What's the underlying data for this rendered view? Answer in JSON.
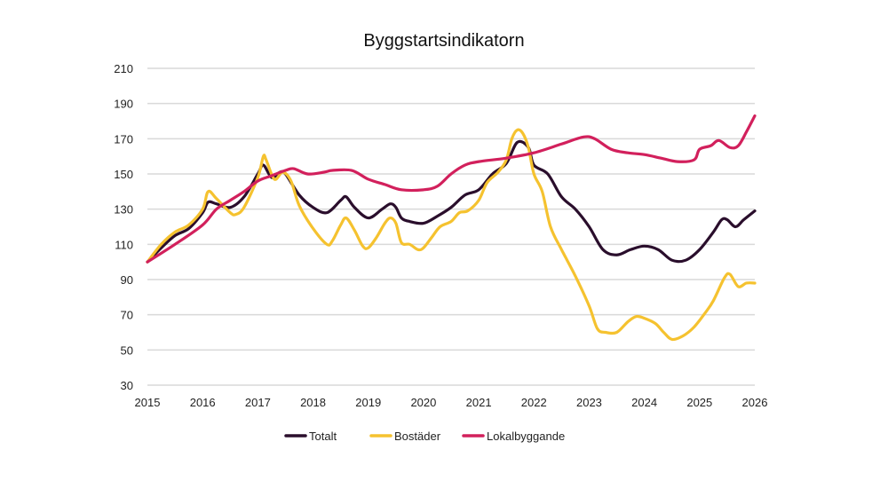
{
  "chart_data": {
    "type": "line",
    "title": "Byggstartsindikatorn",
    "xlabel": "",
    "ylabel": "",
    "xlim": [
      2015,
      2026
    ],
    "ylim": [
      30,
      210
    ],
    "x_ticks": [
      "2015",
      "2016",
      "2017",
      "2018",
      "2019",
      "2020",
      "2021",
      "2022",
      "2023",
      "2024",
      "2025",
      "2026"
    ],
    "y_ticks": [
      "30",
      "50",
      "70",
      "90",
      "110",
      "130",
      "150",
      "170",
      "190",
      "210"
    ],
    "grid": "horizontal",
    "legend_position": "bottom",
    "series": [
      {
        "name": "Totalt",
        "color": "#2a0e2c",
        "x": [
          2015,
          2015.25,
          2015.5,
          2015.75,
          2016,
          2016.1,
          2016.25,
          2016.5,
          2016.75,
          2017,
          2017.1,
          2017.25,
          2017.4,
          2017.5,
          2017.75,
          2018,
          2018.25,
          2018.5,
          2018.6,
          2018.75,
          2019,
          2019.25,
          2019.4,
          2019.5,
          2019.6,
          2019.75,
          2020,
          2020.25,
          2020.5,
          2020.75,
          2021,
          2021.25,
          2021.5,
          2021.7,
          2021.9,
          2022,
          2022.25,
          2022.5,
          2022.75,
          2023,
          2023.25,
          2023.5,
          2023.75,
          2024,
          2024.25,
          2024.5,
          2024.75,
          2025,
          2025.25,
          2025.4,
          2025.5,
          2025.65,
          2025.8,
          2026
        ],
        "y": [
          100,
          108,
          115,
          119,
          128,
          134,
          133,
          131,
          137,
          150,
          155,
          148,
          151,
          150,
          138,
          131,
          128,
          135,
          137,
          131,
          125,
          130,
          133,
          131,
          125,
          123,
          122,
          126,
          131,
          138,
          141,
          150,
          156,
          168,
          165,
          155,
          150,
          137,
          130,
          120,
          107,
          104,
          107,
          109,
          107,
          101,
          101,
          107,
          117,
          124,
          124,
          120,
          124,
          129
        ]
      },
      {
        "name": "Bostäder",
        "color": "#f5c22f",
        "x": [
          2015,
          2015.25,
          2015.5,
          2015.75,
          2016,
          2016.1,
          2016.25,
          2016.5,
          2016.6,
          2016.75,
          2017,
          2017.1,
          2017.15,
          2017.3,
          2017.45,
          2017.6,
          2017.75,
          2018,
          2018.25,
          2018.35,
          2018.5,
          2018.6,
          2018.75,
          2018.9,
          2019,
          2019.15,
          2019.3,
          2019.4,
          2019.5,
          2019.6,
          2019.75,
          2019.9,
          2020,
          2020.15,
          2020.3,
          2020.5,
          2020.65,
          2020.8,
          2021,
          2021.15,
          2021.35,
          2021.5,
          2021.6,
          2021.7,
          2021.8,
          2021.9,
          2022,
          2022.15,
          2022.3,
          2022.5,
          2022.75,
          2023,
          2023.15,
          2023.3,
          2023.5,
          2023.7,
          2023.85,
          2024,
          2024.2,
          2024.35,
          2024.5,
          2024.7,
          2024.9,
          2025.1,
          2025.25,
          2025.45,
          2025.55,
          2025.7,
          2025.85,
          2026
        ],
        "y": [
          100,
          110,
          117,
          121,
          130,
          140,
          136,
          128,
          127,
          131,
          148,
          160,
          158,
          147,
          151,
          146,
          132,
          119,
          110,
          112,
          121,
          125,
          118,
          109,
          108,
          114,
          122,
          125,
          122,
          111,
          110,
          107,
          108,
          114,
          120,
          123,
          128,
          129,
          135,
          145,
          151,
          158,
          170,
          175,
          173,
          165,
          150,
          140,
          120,
          107,
          92,
          75,
          62,
          60,
          60,
          66,
          69,
          68,
          65,
          60,
          56,
          58,
          63,
          71,
          78,
          91,
          93,
          86,
          88,
          88
        ]
      },
      {
        "name": "Lokalbyggande",
        "color": "#d2205c",
        "x": [
          2015,
          2015.5,
          2016,
          2016.25,
          2016.5,
          2016.75,
          2017,
          2017.25,
          2017.5,
          2017.65,
          2017.9,
          2018.2,
          2018.35,
          2018.7,
          2019,
          2019.3,
          2019.6,
          2020,
          2020.25,
          2020.5,
          2020.75,
          2021,
          2021.5,
          2022,
          2022.5,
          2022.9,
          2023.1,
          2023.4,
          2023.7,
          2024,
          2024.3,
          2024.6,
          2024.9,
          2025,
          2025.2,
          2025.35,
          2025.55,
          2025.7,
          2025.85,
          2026
        ],
        "y": [
          100,
          110,
          121,
          130,
          135,
          140,
          146,
          149,
          152,
          153,
          150,
          151,
          152,
          152,
          147,
          144,
          141,
          141,
          143,
          150,
          155,
          157,
          159,
          162,
          167,
          171,
          170,
          164,
          162,
          161,
          159,
          157,
          158,
          164,
          166,
          169,
          165,
          166,
          174,
          183
        ]
      }
    ]
  }
}
